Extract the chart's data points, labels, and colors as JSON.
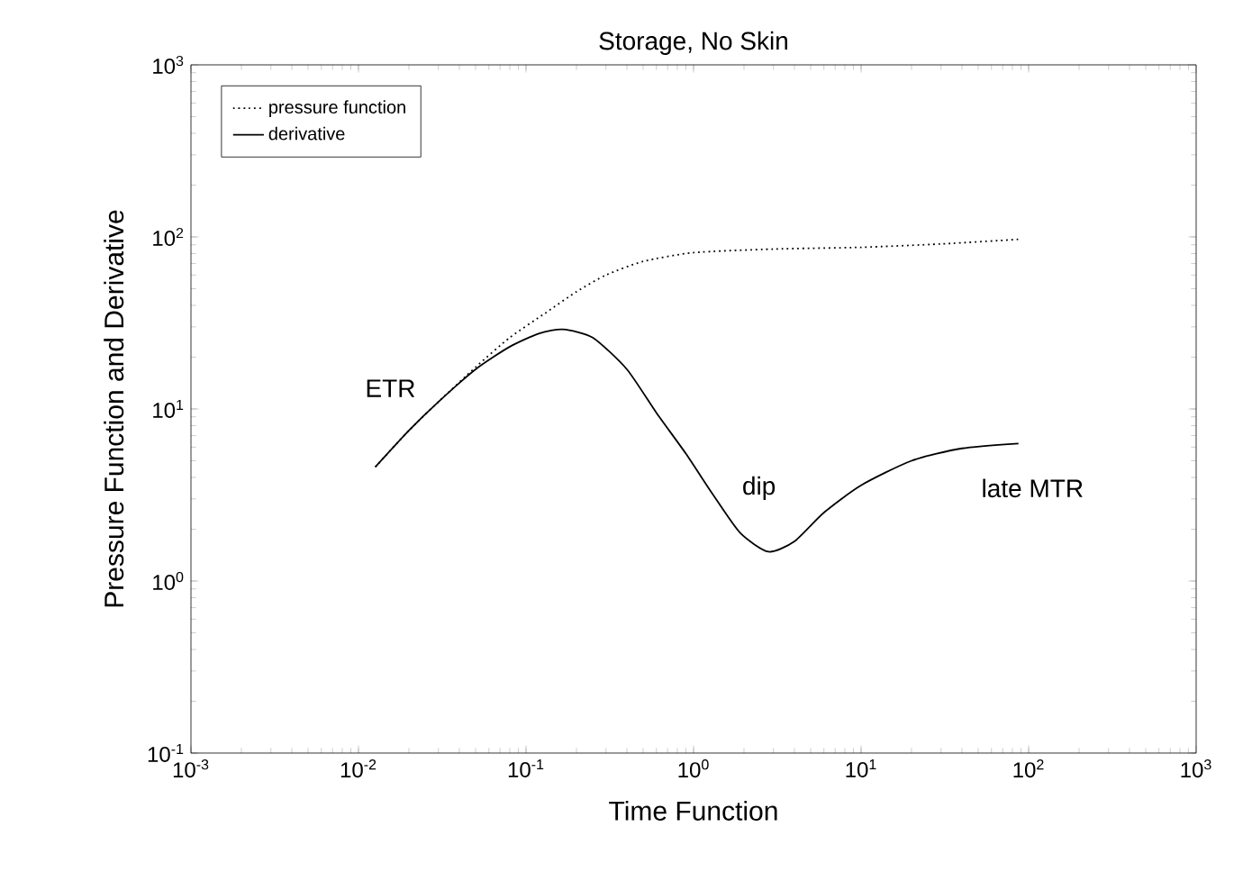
{
  "chart_data": {
    "type": "line",
    "title": "Storage, No Skin",
    "xlabel": "Time Function",
    "ylabel": "Pressure Function and Derivative",
    "log": "xy",
    "legend": "top left",
    "xlim": [
      0.001,
      1000
    ],
    "ylim": [
      0.1,
      1000
    ],
    "xticks": [
      {
        "value": 0.001,
        "label": "10$^{-3}$"
      },
      {
        "value": 0.01,
        "label": "10$^{-2}$"
      },
      {
        "value": 0.1,
        "label": "10$^{-1}$"
      },
      {
        "value": 1,
        "label": "10$^{0}$"
      },
      {
        "value": 10,
        "label": "10$^{1}$"
      },
      {
        "value": 100,
        "label": "10$^{2}$"
      },
      {
        "value": 1000,
        "label": "10$^{3}$"
      }
    ],
    "yticks": [
      {
        "value": 0.1,
        "label": "10$^{-1}$"
      },
      {
        "value": 1,
        "label": "10$^{0}$"
      },
      {
        "value": 10,
        "label": "10$^{1}$"
      },
      {
        "value": 100,
        "label": "10$^{2}$"
      },
      {
        "value": 1000,
        "label": "10$^{3}$"
      }
    ],
    "series": [
      {
        "name": "pressure function",
        "color": "#000000",
        "line_style": "dotted",
        "x": [
          0.0126,
          0.02,
          0.03,
          0.05,
          0.08,
          0.13,
          0.2,
          0.3,
          0.5,
          1,
          3,
          10,
          30,
          90
        ],
        "values": [
          4.6,
          7.5,
          11,
          17.5,
          26,
          36,
          48,
          60,
          72,
          81,
          85,
          87,
          91,
          97
        ]
      },
      {
        "name": "derivative",
        "color": "#000000",
        "line_style": "solid",
        "x": [
          0.0126,
          0.02,
          0.03,
          0.05,
          0.08,
          0.12,
          0.166,
          0.25,
          0.4,
          0.6,
          0.9,
          1.3,
          1.9,
          2.8,
          4,
          6,
          10,
          20,
          40,
          87
        ],
        "values": [
          4.6,
          7.5,
          11,
          17,
          23,
          27.5,
          29,
          26,
          17,
          9.5,
          5.5,
          3.2,
          1.9,
          1.48,
          1.7,
          2.5,
          3.6,
          5.0,
          5.9,
          6.3
        ]
      }
    ],
    "annotations": [
      "ETR",
      "dip",
      "late MTR"
    ]
  }
}
